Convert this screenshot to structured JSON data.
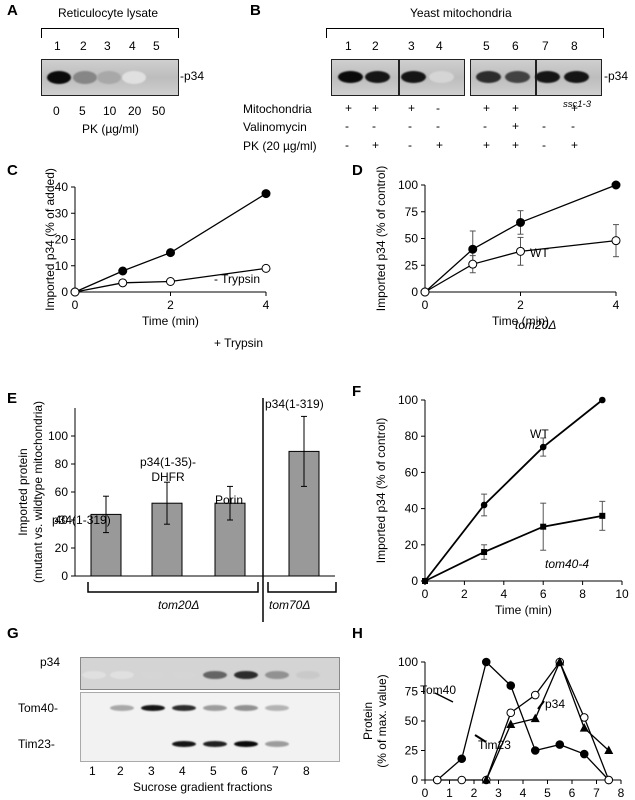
{
  "panels": {
    "A": "A",
    "B": "B",
    "C": "C",
    "D": "D",
    "E": "E",
    "F": "F",
    "G": "G",
    "H": "H"
  },
  "panelA": {
    "header": "Reticulocyte lysate",
    "lanes": [
      "1",
      "2",
      "3",
      "4",
      "5"
    ],
    "band_label": "p34",
    "pk_values": [
      "0",
      "5",
      "10",
      "20",
      "50"
    ],
    "pk_label": "PK (µg/ml)",
    "band_intensity": [
      1.0,
      0.45,
      0.3,
      0.05,
      0.0
    ]
  },
  "panelB": {
    "header": "Yeast mitochondria",
    "lanes": [
      "1",
      "2",
      "3",
      "4",
      "5",
      "6",
      "7",
      "8"
    ],
    "band_label": "p34",
    "strain_note": "ssc1-3",
    "rows": [
      {
        "label": "Mitochondria",
        "values": [
          "+",
          "+",
          "+",
          "-",
          "+",
          "+",
          "+",
          "+"
        ]
      },
      {
        "label": "Valinomycin",
        "values": [
          "-",
          "-",
          "-",
          "-",
          "-",
          "+",
          "-",
          "-"
        ]
      },
      {
        "label": "PK (20 µg/ml)",
        "values": [
          "-",
          "+",
          "-",
          "+",
          "+",
          "+",
          "-",
          "+"
        ]
      }
    ],
    "band_intensity": [
      1.0,
      0.95,
      0.95,
      0.1,
      0.85,
      0.75,
      0.95,
      0.95
    ]
  },
  "chart_data": [
    {
      "id": "C",
      "type": "line",
      "xlabel": "Time (min)",
      "ylabel": "Imported p34 (% of added)",
      "xlim": [
        0,
        4
      ],
      "ylim": [
        0,
        40
      ],
      "xticks": [
        0,
        2,
        4
      ],
      "yticks": [
        0,
        10,
        20,
        30,
        40
      ],
      "series": [
        {
          "name": "- Trypsin",
          "marker": "filled",
          "x": [
            0,
            1,
            2,
            4
          ],
          "y": [
            0,
            8,
            15,
            37.5
          ]
        },
        {
          "name": "+ Trypsin",
          "marker": "open",
          "x": [
            0,
            1,
            2,
            4
          ],
          "y": [
            0,
            3.5,
            4,
            9
          ]
        }
      ]
    },
    {
      "id": "D",
      "type": "line",
      "xlabel": "Time (min)",
      "ylabel": "Imported p34 (% of control)",
      "xlim": [
        0,
        4
      ],
      "ylim": [
        0,
        100
      ],
      "xticks": [
        0,
        2,
        4
      ],
      "yticks": [
        0,
        25,
        50,
        75,
        100
      ],
      "series": [
        {
          "name": "WT",
          "marker": "filled",
          "x": [
            0,
            1,
            2,
            4
          ],
          "y": [
            0,
            40,
            65,
            100
          ],
          "err": [
            0,
            17,
            11,
            0
          ]
        },
        {
          "name": "tom20Δ",
          "marker": "open",
          "x": [
            0,
            1,
            2,
            4
          ],
          "y": [
            0,
            26,
            38,
            48
          ],
          "err": [
            0,
            8,
            13,
            15
          ]
        }
      ]
    },
    {
      "id": "E",
      "type": "bar",
      "ylabel": "Imported protein (mutant vs. wildtype mitochondria)",
      "ylim": [
        0,
        120
      ],
      "yticks": [
        0,
        20,
        40,
        60,
        80,
        100
      ],
      "categories": [
        "p34(1-319)",
        "p34(1-35)-DHFR",
        "Porin",
        "p34(1-319)"
      ],
      "values": [
        44,
        52,
        52,
        89
      ],
      "err": [
        13,
        15,
        12,
        25
      ],
      "groups": [
        {
          "label": "tom20Δ",
          "bars": [
            0,
            1,
            2
          ]
        },
        {
          "label": "tom70Δ",
          "bars": [
            3
          ]
        }
      ]
    },
    {
      "id": "F",
      "type": "line",
      "xlabel": "Time (min)",
      "ylabel": "Imported p34 (% of control)",
      "xlim": [
        0,
        10
      ],
      "ylim": [
        0,
        100
      ],
      "xticks": [
        0,
        2,
        4,
        6,
        8,
        10
      ],
      "yticks": [
        0,
        20,
        40,
        60,
        80,
        100
      ],
      "series": [
        {
          "name": "WT",
          "marker": "filled",
          "x": [
            0,
            3,
            6,
            9
          ],
          "y": [
            0,
            42,
            74,
            100
          ],
          "err": [
            0,
            6,
            5,
            0
          ]
        },
        {
          "name": "tom40-4",
          "marker": "square",
          "x": [
            0,
            3,
            6,
            9
          ],
          "y": [
            0,
            16,
            30,
            36
          ],
          "err": [
            0,
            4,
            13,
            8
          ]
        }
      ]
    },
    {
      "id": "H",
      "type": "line",
      "xlabel": "Sucrose gradient fractions",
      "ylabel": "Protein (% of max. value)",
      "xlim": [
        0,
        8
      ],
      "ylim": [
        0,
        100
      ],
      "xticks": [
        0,
        1,
        2,
        3,
        4,
        5,
        6,
        7,
        8
      ],
      "yticks": [
        0,
        25,
        50,
        75,
        100
      ],
      "series": [
        {
          "name": "Tom40",
          "marker": "filled",
          "x": [
            0.5,
            1.5,
            2.5,
            3.5,
            4.5,
            5.5,
            6.5,
            7.5
          ],
          "y": [
            0,
            18,
            100,
            80,
            25,
            30,
            22,
            0
          ]
        },
        {
          "name": "p34",
          "marker": "open",
          "x": [
            0.5,
            1.5,
            2.5,
            3.5,
            4.5,
            5.5,
            6.5,
            7.5
          ],
          "y": [
            0,
            0,
            0,
            57,
            72,
            100,
            53,
            0
          ]
        },
        {
          "name": "Tim23",
          "marker": "triangle",
          "x": [
            2.5,
            3.5,
            4.5,
            5.5,
            6.5,
            7.5
          ],
          "y": [
            0,
            47,
            52,
            100,
            44,
            25
          ]
        }
      ]
    }
  ],
  "panelG": {
    "rows": [
      "p34",
      "Tom40",
      "Tim23"
    ],
    "fractions": [
      "1",
      "2",
      "3",
      "4",
      "5",
      "6",
      "7",
      "8"
    ],
    "xlabel": "Sucrose gradient fractions",
    "p34_intensity": [
      0.05,
      0.05,
      0.1,
      0.1,
      0.6,
      0.85,
      0.4,
      0.15
    ],
    "tom40_intensity": [
      0.0,
      0.3,
      0.95,
      0.85,
      0.35,
      0.4,
      0.25,
      0.0
    ],
    "tim23_intensity": [
      0.0,
      0.0,
      0.0,
      0.95,
      0.9,
      1.0,
      0.35,
      0.0
    ]
  },
  "colors": {
    "bar": "#999999",
    "ink": "#000000"
  }
}
